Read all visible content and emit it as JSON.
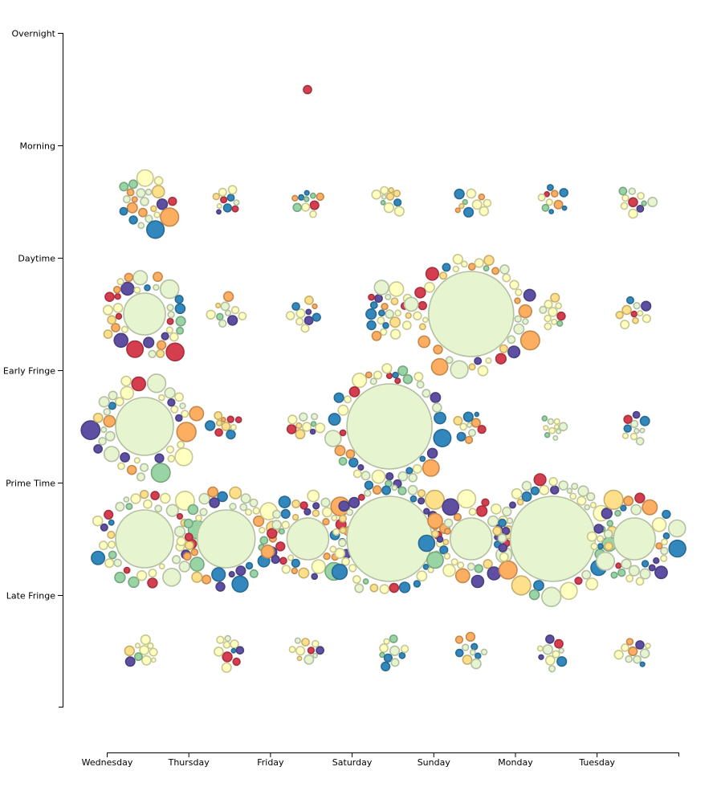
{
  "chart_data": {
    "type": "scatter",
    "title": "",
    "xlabel": "",
    "ylabel": "",
    "x_categories": [
      "Wednesday",
      "Thursday",
      "Friday",
      "Saturday",
      "Sunday",
      "Monday",
      "Tuesday"
    ],
    "y_categories": [
      "Overnight",
      "Morning",
      "Daytime",
      "Early Fringe",
      "Prime Time",
      "Late Fringe"
    ],
    "grid": false,
    "legend": "none",
    "palette": {
      "green": "#e6f5d0",
      "yellow": "#ffffbf",
      "cream": "#fee08b",
      "orange": "#fdae61",
      "red": "#d53e4f",
      "teal": "#99d5a4",
      "blue": "#3288bd",
      "purple": "#5e4fa2"
    },
    "clusters": [
      {
        "day": "Wednesday",
        "daypart": "Morning",
        "level": "small"
      },
      {
        "day": "Thursday",
        "daypart": "Morning",
        "level": "tiny"
      },
      {
        "day": "Friday",
        "daypart": "Morning",
        "level": "tiny"
      },
      {
        "day": "Saturday",
        "daypart": "Morning",
        "level": "tiny"
      },
      {
        "day": "Sunday",
        "daypart": "Morning",
        "level": "tiny"
      },
      {
        "day": "Monday",
        "daypart": "Morning",
        "level": "tiny"
      },
      {
        "day": "Tuesday",
        "daypart": "Morning",
        "level": "tiny"
      },
      {
        "day": "Wednesday",
        "daypart": "Daytime",
        "level": "medium"
      },
      {
        "day": "Thursday",
        "daypart": "Daytime",
        "level": "tiny"
      },
      {
        "day": "Friday",
        "daypart": "Daytime",
        "level": "tiny"
      },
      {
        "day": "Saturday",
        "daypart": "Daytime",
        "level": "small"
      },
      {
        "day": "Sunday",
        "daypart": "Daytime",
        "level": "huge"
      },
      {
        "day": "Monday",
        "daypart": "Daytime",
        "level": "tiny"
      },
      {
        "day": "Tuesday",
        "daypart": "Daytime",
        "level": "tiny"
      },
      {
        "day": "Wednesday",
        "daypart": "Early Fringe",
        "level": "large"
      },
      {
        "day": "Thursday",
        "daypart": "Early Fringe",
        "level": "tiny"
      },
      {
        "day": "Friday",
        "daypart": "Early Fringe",
        "level": "tiny"
      },
      {
        "day": "Saturday",
        "daypart": "Early Fringe",
        "level": "huge"
      },
      {
        "day": "Sunday",
        "daypart": "Early Fringe",
        "level": "tiny"
      },
      {
        "day": "Monday",
        "daypart": "Early Fringe",
        "level": "tiny"
      },
      {
        "day": "Tuesday",
        "daypart": "Early Fringe",
        "level": "tiny"
      },
      {
        "day": "Wednesday",
        "daypart": "Prime Time",
        "level": "large"
      },
      {
        "day": "Thursday",
        "daypart": "Prime Time",
        "level": "large"
      },
      {
        "day": "Friday",
        "daypart": "Prime Time",
        "level": "medium"
      },
      {
        "day": "Saturday",
        "daypart": "Prime Time",
        "level": "huge"
      },
      {
        "day": "Sunday",
        "daypart": "Prime Time",
        "level": "medium"
      },
      {
        "day": "Monday",
        "daypart": "Prime Time",
        "level": "huge"
      },
      {
        "day": "Tuesday",
        "daypart": "Prime Time",
        "level": "medium"
      },
      {
        "day": "Wednesday",
        "daypart": "Late Fringe",
        "level": "tiny"
      },
      {
        "day": "Thursday",
        "daypart": "Late Fringe",
        "level": "tiny"
      },
      {
        "day": "Friday",
        "daypart": "Late Fringe",
        "level": "tiny"
      },
      {
        "day": "Saturday",
        "daypart": "Late Fringe",
        "level": "tiny"
      },
      {
        "day": "Sunday",
        "daypart": "Late Fringe",
        "level": "tiny"
      },
      {
        "day": "Monday",
        "daypart": "Late Fringe",
        "level": "tiny"
      },
      {
        "day": "Tuesday",
        "daypart": "Late Fringe",
        "level": "tiny"
      },
      {
        "day": "Friday",
        "daypart": "Overnight",
        "level": "tiny"
      }
    ]
  }
}
